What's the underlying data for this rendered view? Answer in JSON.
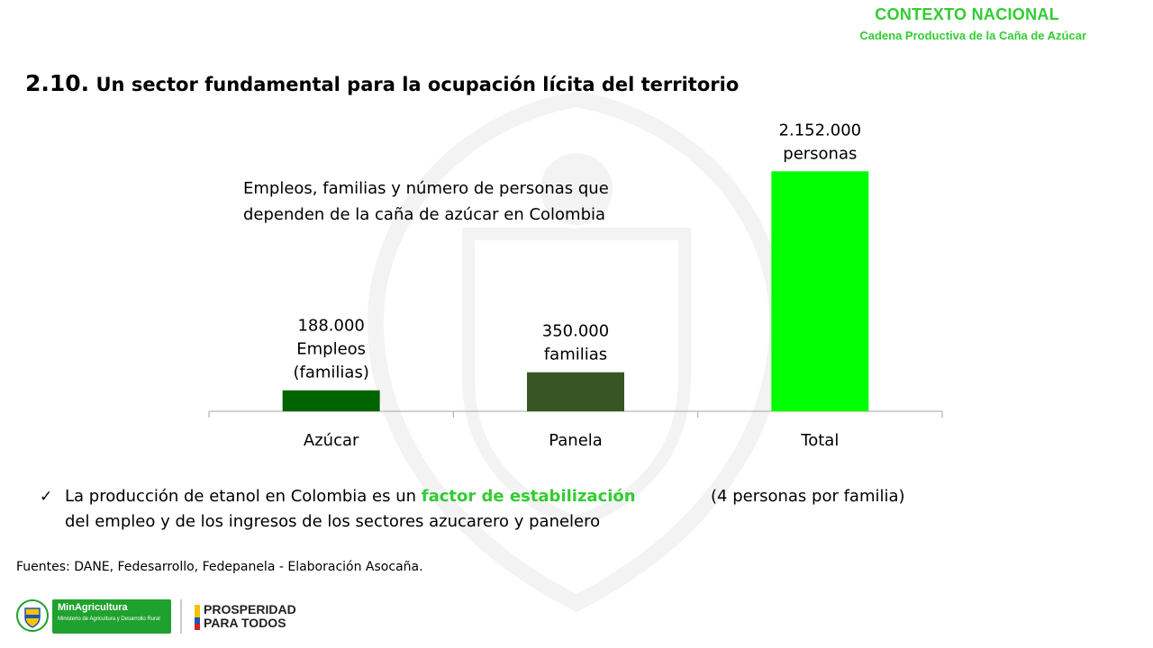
{
  "header": {
    "section": "CONTEXTO NACIONAL",
    "subtitle": "Cadena Productiva de la Caña de Azúcar"
  },
  "slide": {
    "number": "2.10.",
    "title": "Un sector fundamental para la ocupación lícita del territorio"
  },
  "chart_description": "Empleos, familias y número de personas que dependen de la caña de azúcar en Colombia",
  "chart_data": {
    "type": "bar",
    "categories": [
      "Azúcar",
      "Panela",
      "Total"
    ],
    "values": [
      188000,
      350000,
      2152000
    ],
    "data_labels": [
      [
        "188.000",
        "Empleos",
        "(familias)"
      ],
      [
        "350.000",
        "familias"
      ],
      [
        "2.152.000",
        "personas"
      ]
    ],
    "colors": [
      "#006400",
      "#375623",
      "#00ff00"
    ],
    "ylim": [
      0,
      2300000
    ],
    "grid": false,
    "legend": "none"
  },
  "bullet": {
    "prefix": "La producción de etanol en Colombia es un",
    "highlight": "factor de estabilización",
    "line2": "del empleo y de los ingresos de los sectores azucarero y panelero",
    "note": "(4 personas por familia)",
    "highlight_color": "#33cc33"
  },
  "sources": "Fuentes: DANE, Fedesarrollo, Fedepanela -  Elaboración Asocaña.",
  "footer": {
    "ministry_name": "MinAgricultura",
    "ministry_sub": "Ministerio de Agricultura y Desarrollo Rural",
    "prosperity_line1": "PROSPERIDAD",
    "prosperity_line2": "PARA TODOS"
  }
}
